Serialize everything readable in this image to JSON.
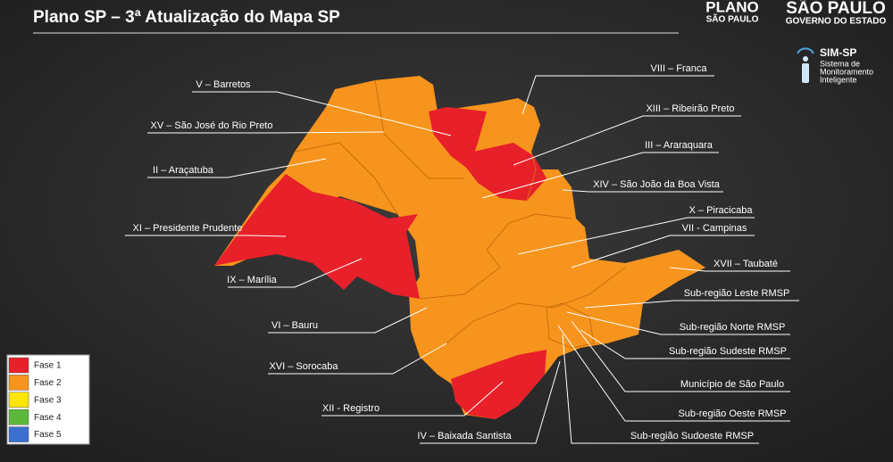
{
  "header": {
    "title": "Plano SP – 3ª Atualização do Mapa SP",
    "logo_plano": [
      "PLANO",
      "SÃO PAULO"
    ],
    "logo_governo": [
      "SÃO PAULO",
      "GOVERNO DO ESTADO"
    ],
    "logo_simsp": {
      "name": "SIM-SP",
      "lines": [
        "Sistema de",
        "Monitoramento",
        "Inteligente"
      ]
    }
  },
  "legend": [
    {
      "label": "Fase 1",
      "color": "#e8202a"
    },
    {
      "label": "Fase 2",
      "color": "#f7941d"
    },
    {
      "label": "Fase 3",
      "color": "#ffe600"
    },
    {
      "label": "Fase 4",
      "color": "#5cb83a"
    },
    {
      "label": "Fase 5",
      "color": "#3b6fd0"
    }
  ],
  "regions": [
    "V – Barretos",
    "XV – São José do Rio Preto",
    "II – Araçatuba",
    "XI – Presidente Prudente",
    "IX – Marília",
    "VI – Bauru",
    "XVI – Sorocaba",
    "XII - Registro",
    "IV – Baixada Santista",
    "VIII – Franca",
    "XIII – Ribeirão Preto",
    "III – Araraquara",
    "XIV – São João da Boa Vista",
    "X – Piracicaba",
    "VII - Campinas",
    "XVII – Taubaté",
    "Sub-região Leste RMSP",
    "Sub-região Norte RMSP",
    "Sub-região Sudeste RMSP",
    "Município de São Paulo",
    "Sub-região Oeste RMSP",
    "Sub-região Sudoeste RMSP"
  ]
}
